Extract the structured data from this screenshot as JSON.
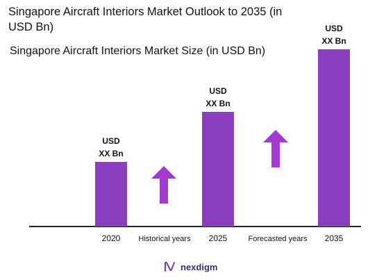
{
  "chart_data": {
    "type": "bar",
    "title": "Singapore Aircraft Interiors Market Outlook to 2035 (in USD Bn)",
    "subtitle": "Singapore Aircraft Interiors Market Size (in USD Bn)",
    "categories": [
      "2020",
      "2025",
      "2035"
    ],
    "values": [
      93,
      165,
      255
    ],
    "data_labels": [
      {
        "line1": "USD",
        "line2": "XX Bn"
      },
      {
        "line1": "USD",
        "line2": "XX Bn"
      },
      {
        "line1": "USD",
        "line2": "XX Bn"
      }
    ],
    "period_labels": [
      "Historical years",
      "Forecasted years"
    ],
    "ylim": [
      0,
      260
    ],
    "grid": false,
    "bar_color": "#8a3fbf",
    "arrow_color": "#a23ad0"
  },
  "brand": {
    "name": "nexdigm",
    "color": "#3b2a73",
    "icon": "nexdigm-logo-icon"
  }
}
